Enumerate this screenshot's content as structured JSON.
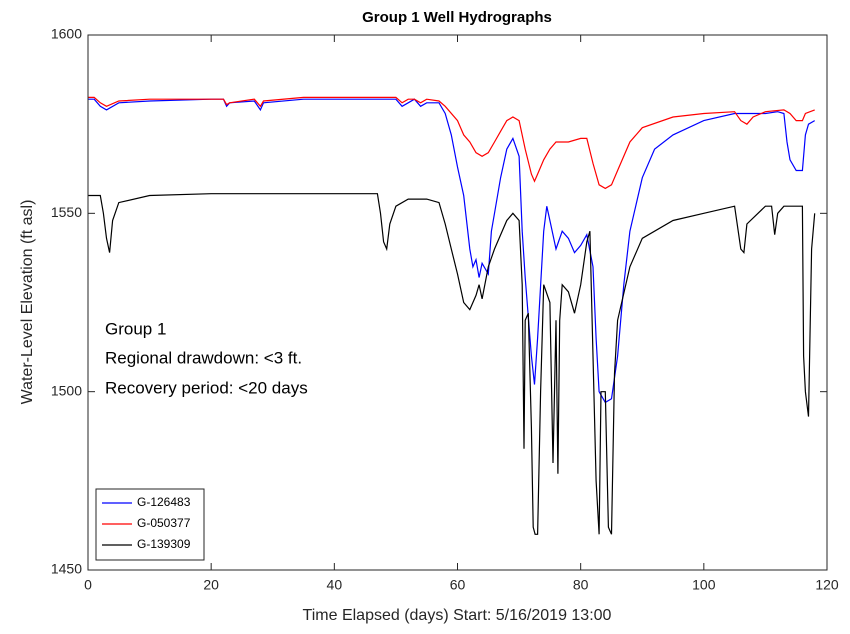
{
  "chart_data": {
    "type": "line",
    "title": "Group 1 Well Hydrographs",
    "xlabel": "Time Elapsed (days) Start: 5/16/2019 13:00",
    "ylabel": "Water-Level Elevation (ft asl)",
    "annotations": [
      "Group 1",
      "Regional drawdown: <3 ft.",
      "Recovery period: <20 days"
    ],
    "xlim": [
      0,
      120
    ],
    "xticks": [
      0,
      20,
      40,
      60,
      80,
      100,
      120
    ],
    "ylim": [
      1450,
      1600
    ],
    "yticks": [
      1450,
      1500,
      1550,
      1600
    ],
    "grid": false,
    "legend": "lower left",
    "series": [
      {
        "name": "G-126483",
        "color": "#0000ff",
        "x": [
          0,
          1,
          2,
          3,
          5,
          10,
          20,
          22,
          22.5,
          23,
          27,
          28,
          28.5,
          35,
          45,
          50,
          51,
          52,
          53,
          54,
          55,
          57,
          58,
          59,
          60,
          61,
          62,
          62.5,
          63,
          63.5,
          64,
          65,
          65.5,
          66,
          67,
          68,
          69,
          70,
          70.5,
          71,
          72,
          72.5,
          73,
          74,
          74.5,
          75,
          76,
          77,
          78,
          79,
          80,
          81,
          82,
          82.5,
          83,
          84,
          85,
          86,
          87,
          88,
          90,
          92,
          95,
          100,
          105,
          107,
          110,
          112,
          113,
          113.5,
          114,
          115,
          116,
          116.5,
          117,
          118
        ],
        "values": [
          1582,
          1582,
          1580,
          1579,
          1581,
          1581.5,
          1582,
          1582,
          1580,
          1581,
          1581.5,
          1579,
          1581,
          1582,
          1582,
          1582,
          1580,
          1581,
          1582,
          1580,
          1581,
          1581,
          1578,
          1572,
          1563,
          1555,
          1540,
          1535,
          1537,
          1532,
          1536,
          1533,
          1545,
          1550,
          1560,
          1568,
          1571,
          1566,
          1545,
          1532,
          1510,
          1502,
          1515,
          1545,
          1552,
          1548,
          1540,
          1545,
          1543,
          1539,
          1541,
          1544,
          1535,
          1515,
          1500,
          1497,
          1498,
          1510,
          1530,
          1545,
          1560,
          1568,
          1572,
          1576,
          1578,
          1578,
          1578,
          1578.5,
          1578,
          1570,
          1565,
          1562,
          1562,
          1572,
          1575,
          1576
        ]
      },
      {
        "name": "G-050377",
        "color": "#ff0000",
        "x": [
          0,
          1,
          2,
          3,
          5,
          10,
          20,
          22,
          22.5,
          23,
          27,
          28,
          28.5,
          35,
          45,
          50,
          51,
          52,
          53,
          54,
          55,
          57,
          58,
          60,
          61,
          62,
          63,
          64,
          65,
          66,
          67,
          68,
          69,
          70,
          71,
          72,
          72.5,
          73,
          74,
          75,
          76,
          78,
          80,
          81,
          82,
          83,
          84,
          85,
          86,
          88,
          90,
          95,
          100,
          105,
          106,
          107,
          108,
          110,
          113,
          114,
          115,
          116,
          116.5,
          118
        ],
        "values": [
          1582.5,
          1582.5,
          1581,
          1580,
          1581.5,
          1582,
          1582,
          1582,
          1580.5,
          1581,
          1582,
          1580,
          1581.5,
          1582.5,
          1582.5,
          1582.5,
          1581,
          1582,
          1582,
          1581,
          1582,
          1581.5,
          1580,
          1576,
          1572,
          1570,
          1567,
          1566,
          1567,
          1570,
          1573,
          1576,
          1577,
          1576,
          1568,
          1561,
          1559,
          1561,
          1565,
          1568,
          1570,
          1570,
          1571,
          1571,
          1564,
          1558,
          1557,
          1558,
          1562,
          1570,
          1574,
          1577,
          1578,
          1578.5,
          1576,
          1575,
          1577,
          1578.5,
          1579,
          1578,
          1576,
          1576,
          1578,
          1579
        ]
      },
      {
        "name": "G-139309",
        "color": "#000000",
        "x": [
          0,
          2,
          2.5,
          3,
          3.5,
          4,
          5,
          10,
          20,
          47,
          47.5,
          48,
          48.5,
          49,
          50,
          52,
          55,
          57,
          58,
          59,
          60,
          61,
          62,
          63,
          63.5,
          64,
          65,
          66,
          68,
          69,
          70,
          70.5,
          70.8,
          71,
          71.5,
          72,
          72.3,
          72.6,
          73,
          73.5,
          74,
          75,
          75.5,
          76,
          76.3,
          76.6,
          77,
          78,
          79,
          80,
          81,
          81.5,
          82,
          82.5,
          83,
          83.3,
          84,
          84.5,
          85,
          85.5,
          86,
          88,
          90,
          95,
          100,
          105,
          106,
          106.5,
          107,
          110,
          111,
          111.5,
          112,
          113,
          116,
          116.2,
          116.5,
          117,
          117.5,
          118
        ],
        "values": [
          1555,
          1555,
          1550,
          1543,
          1539,
          1548,
          1553,
          1555,
          1555.5,
          1555.5,
          1550,
          1542,
          1540,
          1547,
          1552,
          1554,
          1554,
          1553,
          1547,
          1540,
          1533,
          1525,
          1523,
          1527,
          1530,
          1526,
          1535,
          1540,
          1548,
          1550,
          1548,
          1530,
          1484,
          1520,
          1522,
          1490,
          1462,
          1460,
          1460,
          1500,
          1530,
          1525,
          1480,
          1520,
          1477,
          1520,
          1530,
          1528,
          1522,
          1530,
          1542,
          1545,
          1510,
          1475,
          1460,
          1500,
          1500,
          1462,
          1460,
          1505,
          1520,
          1535,
          1543,
          1548,
          1550,
          1552,
          1540,
          1539,
          1547,
          1552,
          1552,
          1544,
          1550,
          1552,
          1552,
          1510,
          1500,
          1493,
          1540,
          1550
        ]
      }
    ]
  }
}
